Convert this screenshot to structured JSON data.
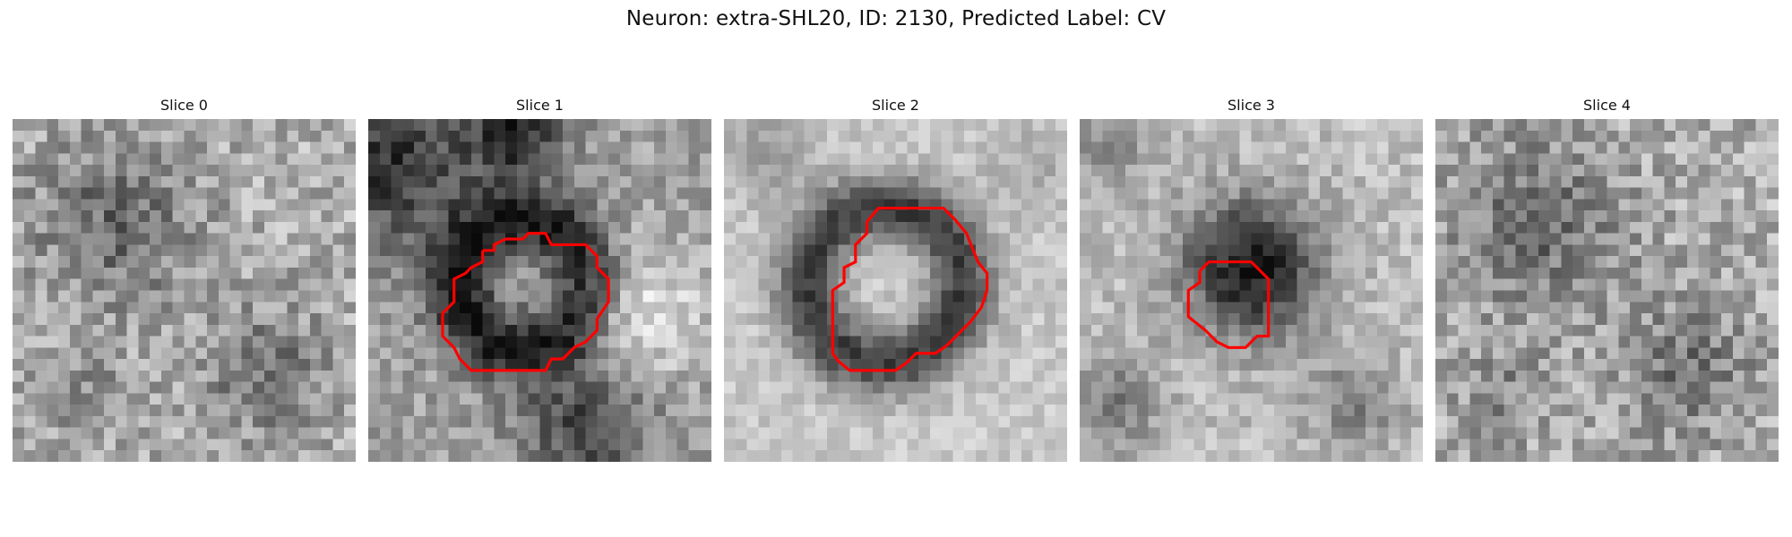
{
  "figure": {
    "title": "Neuron: extra-SHL20, ID: 2130, Predicted Label: CV"
  },
  "slices": [
    {
      "title": "Slice 0",
      "has_contour": false,
      "seed": 11,
      "pattern": "noise"
    },
    {
      "title": "Slice 1",
      "has_contour": true,
      "seed": 23,
      "pattern": "ring-upper"
    },
    {
      "title": "Slice 2",
      "has_contour": true,
      "seed": 37,
      "pattern": "ring"
    },
    {
      "title": "Slice 3",
      "has_contour": true,
      "seed": 51,
      "pattern": "dark-blob"
    },
    {
      "title": "Slice 4",
      "has_contour": false,
      "seed": 67,
      "pattern": "noise"
    }
  ],
  "contour_color": "#ff0000"
}
